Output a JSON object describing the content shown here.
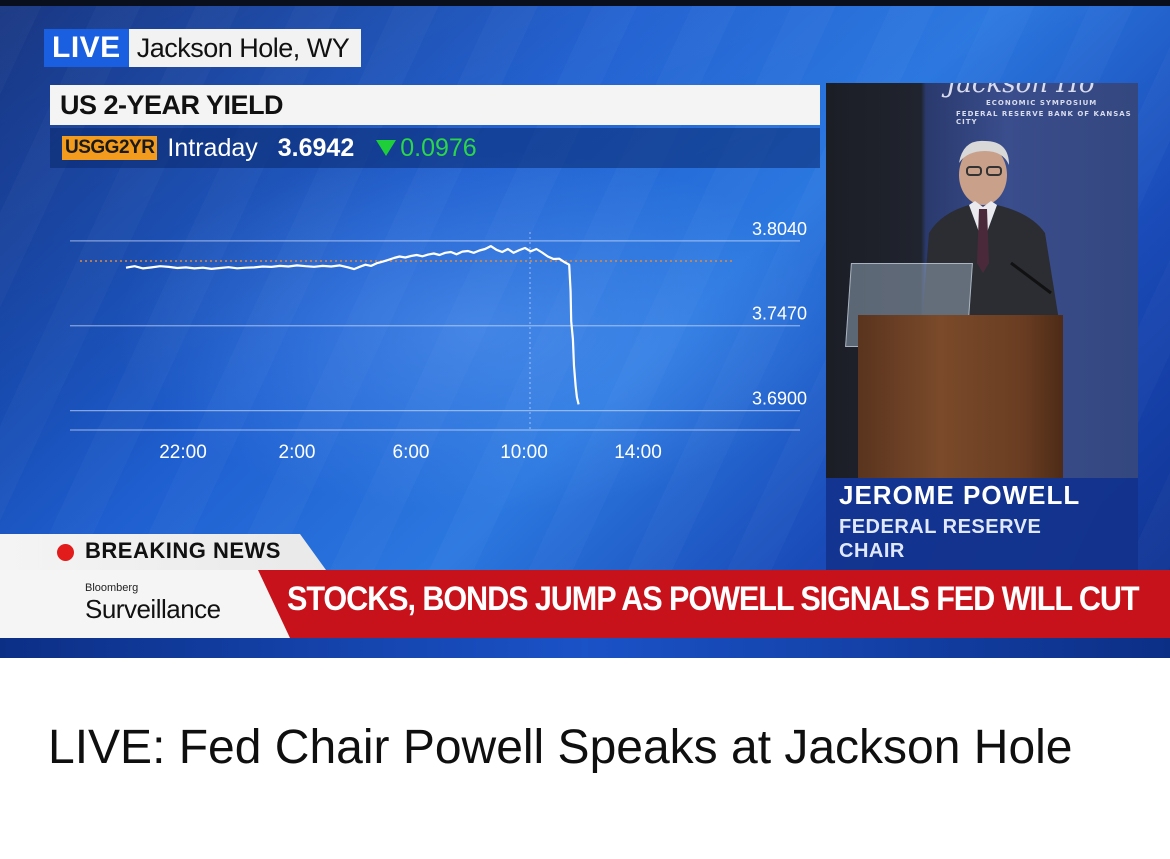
{
  "broadcast": {
    "live_label": "LIVE",
    "location": "Jackson Hole, WY",
    "chart_title": "US 2-YEAR YIELD",
    "ticker_symbol": "USGG2YR",
    "timeframe": "Intraday",
    "price": "3.6942",
    "change": "0.0976",
    "change_direction": "down",
    "change_color": "#2bd64a"
  },
  "chart_data": {
    "type": "line",
    "title": "US 2-YEAR YIELD",
    "y_ticks": [
      "3.8040",
      "3.7470",
      "3.6900"
    ],
    "x_ticks": [
      "22:00",
      "2:00",
      "6:00",
      "10:00",
      "14:00"
    ],
    "ylim": [
      3.677,
      3.818
    ],
    "reference_level": 3.7905,
    "series": [
      {
        "values": [
          [
            20.0,
            3.786
          ],
          [
            20.3,
            3.787
          ],
          [
            20.6,
            3.7855
          ],
          [
            20.9,
            3.7862
          ],
          [
            21.2,
            3.787
          ],
          [
            21.5,
            3.7865
          ],
          [
            21.8,
            3.7858
          ],
          [
            22.1,
            3.7862
          ],
          [
            22.4,
            3.7855
          ],
          [
            22.7,
            3.786
          ],
          [
            23.0,
            3.7852
          ],
          [
            23.3,
            3.7858
          ],
          [
            23.6,
            3.7863
          ],
          [
            23.9,
            3.7856
          ],
          [
            24.2,
            3.786
          ],
          [
            24.5,
            3.7862
          ],
          [
            24.8,
            3.7868
          ],
          [
            25.1,
            3.7865
          ],
          [
            25.4,
            3.7872
          ],
          [
            25.7,
            3.7868
          ],
          [
            26.0,
            3.7875
          ],
          [
            26.3,
            3.787
          ],
          [
            26.6,
            3.7866
          ],
          [
            26.9,
            3.7872
          ],
          [
            27.2,
            3.7868
          ],
          [
            27.5,
            3.7875
          ],
          [
            27.8,
            3.7862
          ],
          [
            28.0,
            3.785
          ],
          [
            28.2,
            3.7866
          ],
          [
            28.4,
            3.788
          ],
          [
            28.6,
            3.7872
          ],
          [
            28.8,
            3.789
          ],
          [
            29.0,
            3.79
          ],
          [
            29.2,
            3.7912
          ],
          [
            29.4,
            3.7925
          ],
          [
            29.6,
            3.7935
          ],
          [
            29.8,
            3.7928
          ],
          [
            30.0,
            3.7938
          ],
          [
            30.2,
            3.7945
          ],
          [
            30.4,
            3.7936
          ],
          [
            30.6,
            3.7948
          ],
          [
            30.8,
            3.7955
          ],
          [
            31.0,
            3.7945
          ],
          [
            31.2,
            3.796
          ],
          [
            31.4,
            3.7965
          ],
          [
            31.6,
            3.795
          ],
          [
            31.8,
            3.7968
          ],
          [
            32.0,
            3.7972
          ],
          [
            32.2,
            3.796
          ],
          [
            32.4,
            3.7975
          ],
          [
            32.6,
            3.7985
          ],
          [
            32.8,
            3.8005
          ],
          [
            33.0,
            3.798
          ],
          [
            33.2,
            3.7965
          ],
          [
            33.4,
            3.7985
          ],
          [
            33.6,
            3.796
          ],
          [
            33.8,
            3.7978
          ],
          [
            34.0,
            3.7992
          ],
          [
            34.2,
            3.797
          ],
          [
            34.4,
            3.7985
          ],
          [
            34.6,
            3.7962
          ],
          [
            34.8,
            3.7935
          ],
          [
            35.0,
            3.7918
          ],
          [
            35.2,
            3.792
          ],
          [
            35.4,
            3.7895
          ],
          [
            35.55,
            3.788
          ],
          [
            35.6,
            3.77
          ],
          [
            35.62,
            3.75
          ],
          [
            35.68,
            3.738
          ],
          [
            35.72,
            3.72
          ],
          [
            35.78,
            3.706
          ],
          [
            35.82,
            3.699
          ],
          [
            35.88,
            3.6942
          ]
        ]
      }
    ],
    "grid": true
  },
  "speaker": {
    "name": "JEROME POWELL",
    "title_line1": "FEDERAL RESERVE",
    "title_line2": "CHAIR",
    "backdrop_script": "Jackson Ho",
    "backdrop_line1": "ECONOMIC SYMPOSIUM",
    "backdrop_line2": "FEDERAL RESERVE BANK OF KANSAS CITY"
  },
  "lower_third": {
    "breaking_label": "BREAKING NEWS",
    "brand_top": "Bloomberg",
    "brand_name": "Surveillance",
    "headline": "STOCKS, BONDS JUMP AS POWELL SIGNALS FED WILL CUT"
  },
  "video_title": "LIVE: Fed Chair Powell Speaks at Jackson Hole"
}
